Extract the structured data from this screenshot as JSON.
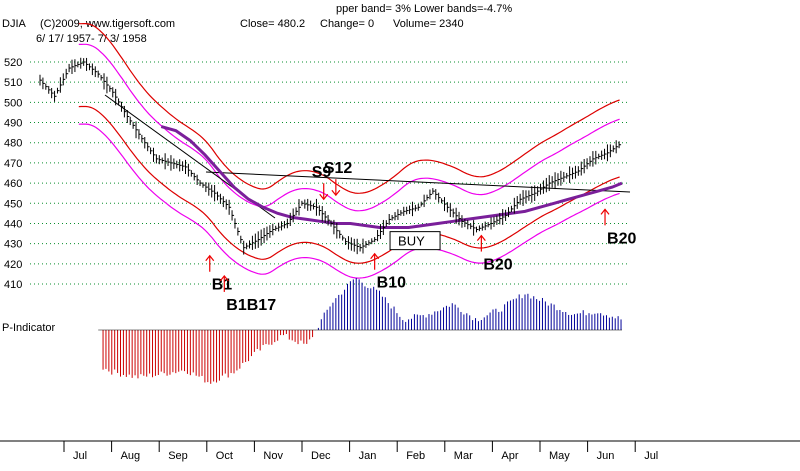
{
  "header": {
    "bands_text": "pper band= 3%     Lower bands=-4.7%",
    "ticker": "DJIA",
    "copyright": "(C)2009, www.tigersoft.com",
    "close_text": "Close=  480.2",
    "change_text": "Change= 0",
    "volume_text": "Volume= 2340",
    "date_range": "6/ 17/ 1957- 7/ 3/ 1958"
  },
  "indicator_label": "P-Indicator",
  "colors": {
    "price_bars": "#000000",
    "band_red": "#dd0000",
    "band_magenta": "#ee00ee",
    "moving_average": "#7a1f9a",
    "indicator_negative": "#cc0000",
    "indicator_positive": "#000099",
    "grid_dots": "#0b8f2f",
    "signal_arrow": "#ee0000"
  },
  "chart_data": {
    "type": "line",
    "title": "",
    "xlabel": "",
    "ylabel": "",
    "ylim": [
      410,
      520
    ],
    "y_ticks": [
      410,
      420,
      430,
      440,
      450,
      460,
      470,
      480,
      490,
      500,
      510,
      520
    ],
    "months": [
      "Jul",
      "Aug",
      "Sep",
      "Oct",
      "Nov",
      "Dec",
      "Jan",
      "Feb",
      "Mar",
      "Apr",
      "May",
      "Jun",
      "Jul"
    ],
    "grid": "dotted horizontal",
    "series": [
      {
        "x": [
          0,
          0.3,
          0.6,
          0.9,
          1.2,
          1.5,
          1.8,
          2.1,
          2.4,
          2.7,
          3.0,
          3.3,
          3.6,
          3.9,
          4.2,
          4.5,
          4.8,
          5.1,
          5.4,
          5.7,
          6.0,
          6.3,
          6.6,
          6.9,
          7.2,
          7.5,
          7.8,
          8.1,
          8.4,
          8.7,
          9.0,
          9.3,
          9.6,
          9.9,
          10.2,
          10.5,
          10.8,
          11.1,
          11.4,
          11.7,
          12.0
        ],
        "values": [
          511,
          503,
          517,
          520,
          514,
          505,
          493,
          482,
          472,
          470,
          468,
          460,
          455,
          448,
          428,
          432,
          437,
          440,
          450,
          448,
          440,
          431,
          428,
          432,
          442,
          446,
          448,
          456,
          448,
          441,
          437,
          440,
          444,
          452,
          455,
          460,
          463,
          466,
          472,
          475,
          480
        ]
      }
    ],
    "moving_average": {
      "x": [
        2.5,
        2.8,
        3.1,
        3.4,
        3.7,
        4.0,
        4.3,
        4.6,
        4.9,
        5.2,
        5.5,
        5.8,
        6.1,
        6.4,
        6.7,
        7.0,
        7.3,
        7.6,
        7.9,
        8.2,
        8.5,
        8.8,
        9.1,
        9.4,
        9.7,
        10.0,
        10.3,
        10.6,
        10.9,
        11.2,
        11.5,
        11.8,
        12.0
      ],
      "values": [
        488,
        486,
        481,
        474,
        466,
        458,
        452,
        448,
        445,
        443,
        442,
        441,
        440,
        440,
        439,
        438,
        438,
        438,
        439,
        440,
        441,
        442,
        443,
        444,
        445,
        446,
        448,
        450,
        452,
        454,
        456,
        458,
        460
      ]
    },
    "signals": [
      {
        "label": "S9",
        "x": 5.85,
        "y": 452,
        "direction": "down"
      },
      {
        "label": "S12",
        "x": 6.1,
        "y": 454,
        "direction": "down"
      },
      {
        "label": "B1",
        "x": 3.5,
        "y": 424,
        "direction": "up"
      },
      {
        "label": "B1B17",
        "x": 3.8,
        "y": 414,
        "direction": "up"
      },
      {
        "label": "BUY",
        "x": 7.3,
        "y": 430,
        "direction": "none"
      },
      {
        "label": "B10",
        "x": 6.9,
        "y": 425,
        "direction": "up"
      },
      {
        "label": "B20",
        "x": 9.1,
        "y": 434,
        "direction": "up"
      },
      {
        "label": "B20",
        "x": 11.65,
        "y": 447,
        "direction": "up"
      }
    ],
    "p_indicator": {
      "x": [
        0.5,
        1.0,
        1.5,
        2.0,
        2.5,
        3.0,
        3.5,
        4.0,
        4.5,
        5.0,
        5.5,
        6.0,
        6.5,
        7.0,
        7.5,
        8.0,
        8.5,
        9.0,
        9.5,
        10.0,
        10.5,
        11.0,
        11.5,
        12.0
      ],
      "values": [
        -10,
        -30,
        -40,
        -45,
        -42,
        -38,
        -50,
        -40,
        -20,
        -5,
        -15,
        25,
        50,
        35,
        10,
        15,
        25,
        10,
        20,
        35,
        25,
        15,
        18,
        10
      ]
    }
  }
}
